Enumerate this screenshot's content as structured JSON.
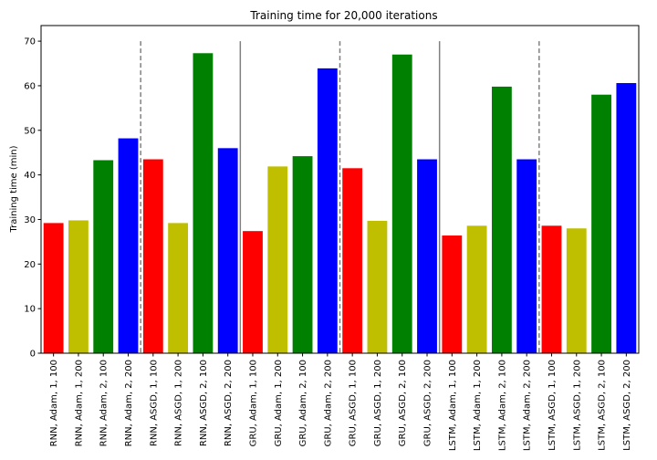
{
  "chart_data": {
    "type": "bar",
    "title": "Training time for 20,000 iterations",
    "xlabel": "",
    "ylabel": "Training time (min)",
    "ylim": [
      0,
      73.5
    ],
    "yticks": [
      0,
      10,
      20,
      30,
      40,
      50,
      60,
      70
    ],
    "grid": false,
    "legend": "none",
    "categories": [
      "RNN, Adam, 1, 100",
      "RNN, Adam, 1, 200",
      "RNN, Adam, 2, 100",
      "RNN, Adam, 2, 200",
      "RNN, ASGD, 1, 100",
      "RNN, ASGD, 1, 200",
      "RNN, ASGD, 2, 100",
      "RNN, ASGD, 2, 200",
      "GRU, Adam, 1, 100",
      "GRU, Adam, 1, 200",
      "GRU, Adam, 2, 100",
      "GRU, Adam, 2, 200",
      "GRU, ASGD, 1, 100",
      "GRU, ASGD, 1, 200",
      "GRU, ASGD, 2, 100",
      "GRU, ASGD, 2, 200",
      "LSTM, Adam, 1, 100",
      "LSTM, Adam, 1, 200",
      "LSTM, Adam, 2, 100",
      "LSTM, Adam, 2, 200",
      "LSTM, ASGD, 1, 100",
      "LSTM, ASGD, 1, 200",
      "LSTM, ASGD, 2, 100",
      "LSTM, ASGD, 2, 200"
    ],
    "values": [
      29.2,
      29.8,
      43.3,
      48.2,
      43.5,
      29.2,
      67.3,
      46.0,
      27.4,
      41.9,
      44.2,
      63.9,
      41.5,
      29.7,
      67.0,
      43.5,
      26.4,
      28.6,
      59.8,
      43.5,
      28.6,
      28.0,
      58.0,
      60.6
    ],
    "bar_colors": [
      "#ff0000",
      "#bfbf00",
      "#008000",
      "#0000ff"
    ],
    "separators": [
      {
        "after_index": 3,
        "style": "dashed"
      },
      {
        "after_index": 7,
        "style": "solid"
      },
      {
        "after_index": 11,
        "style": "dashed"
      },
      {
        "after_index": 15,
        "style": "solid"
      },
      {
        "after_index": 19,
        "style": "dashed"
      }
    ],
    "separator_top_value": 70
  }
}
